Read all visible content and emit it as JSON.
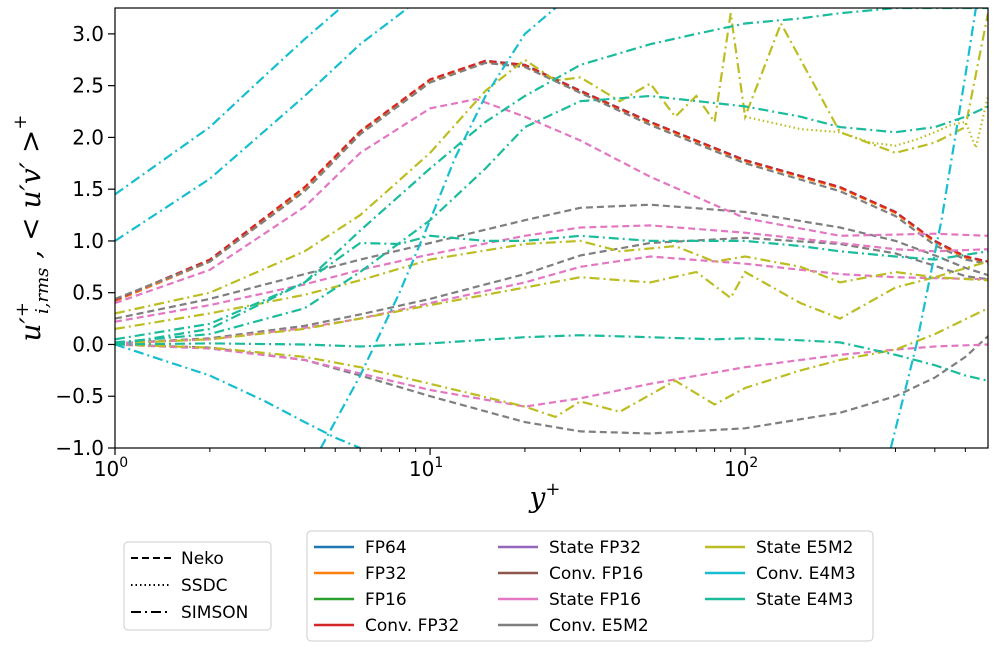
{
  "chart_data": {
    "type": "line",
    "title": "",
    "xlabel": "y+",
    "ylabel": "u'+_{i,rms} ,  <u'v'>+",
    "xscale": "log",
    "xlim": [
      1,
      590
    ],
    "ylim": [
      -1.0,
      3.25
    ],
    "grid": false,
    "x_ticks": [
      {
        "value": 1,
        "base": "10",
        "exp": "0"
      },
      {
        "value": 10,
        "base": "10",
        "exp": "1"
      },
      {
        "value": 100,
        "base": "10",
        "exp": "2"
      }
    ],
    "y_ticks": [
      {
        "value": -1.0,
        "label": "−1.0"
      },
      {
        "value": -0.5,
        "label": "−0.5"
      },
      {
        "value": 0.0,
        "label": "0.0"
      },
      {
        "value": 0.5,
        "label": "0.5"
      },
      {
        "value": 1.0,
        "label": "1.0"
      },
      {
        "value": 1.5,
        "label": "1.5"
      },
      {
        "value": 2.0,
        "label": "2.0"
      },
      {
        "value": 2.5,
        "label": "2.5"
      },
      {
        "value": 3.0,
        "label": "3.0"
      }
    ],
    "legend_linestyles": {
      "position": "below-left",
      "entries": [
        {
          "label": "Neko",
          "dash": "dashed"
        },
        {
          "label": "SSDC",
          "dash": "dotted"
        },
        {
          "label": "SIMSON",
          "dash": "dashdot"
        }
      ]
    },
    "legend_colors": {
      "position": "below-center",
      "columns": [
        [
          {
            "label": "FP64",
            "color": "#1f77b4"
          },
          {
            "label": "FP32",
            "color": "#ff7f0e"
          },
          {
            "label": "FP16",
            "color": "#2ca02c"
          },
          {
            "label": "Conv. FP32",
            "color": "#d62728"
          }
        ],
        [
          {
            "label": "State FP32",
            "color": "#9467bd"
          },
          {
            "label": "Conv. FP16",
            "color": "#8c564b"
          },
          {
            "label": "State FP16",
            "color": "#e377c2"
          },
          {
            "label": "Conv. E5M2",
            "color": "#7f7f7f"
          }
        ],
        [
          {
            "label": "State E5M2",
            "color": "#bcbd22"
          },
          {
            "label": "Conv. E4M3",
            "color": "#17becf"
          },
          {
            "label": "State E4M3",
            "color": "#1abc9c"
          }
        ]
      ]
    },
    "series": [
      {
        "name": "FP64 u_rms (Neko)",
        "color": "#1f77b4",
        "dash": "dashed",
        "x": [
          1,
          2,
          4,
          6,
          10,
          15,
          20,
          30,
          50,
          100,
          200,
          300,
          400,
          500,
          590
        ],
        "y": [
          0.42,
          0.8,
          1.5,
          2.05,
          2.55,
          2.74,
          2.7,
          2.45,
          2.15,
          1.78,
          1.52,
          1.28,
          1.0,
          0.85,
          0.8
        ]
      },
      {
        "name": "FP32 u_rms",
        "color": "#ff7f0e",
        "dash": "dashed",
        "x": [
          1,
          2,
          4,
          6,
          10,
          15,
          20,
          30,
          50,
          100,
          200,
          300,
          400,
          500,
          590
        ],
        "y": [
          0.42,
          0.8,
          1.5,
          2.05,
          2.55,
          2.73,
          2.69,
          2.44,
          2.14,
          1.77,
          1.51,
          1.27,
          0.99,
          0.84,
          0.8
        ]
      },
      {
        "name": "Conv. FP32 u_rms",
        "color": "#d62728",
        "dash": "dashed",
        "x": [
          1,
          2,
          4,
          6,
          10,
          15,
          20,
          30,
          50,
          100,
          200,
          300,
          400,
          500,
          590
        ],
        "y": [
          0.43,
          0.82,
          1.52,
          2.06,
          2.56,
          2.74,
          2.7,
          2.45,
          2.15,
          1.78,
          1.52,
          1.28,
          1.0,
          0.85,
          0.8
        ]
      },
      {
        "name": "Conv. E5M2 u_rms",
        "color": "#7f7f7f",
        "dash": "dashed",
        "x": [
          1,
          2,
          4,
          6,
          10,
          15,
          20,
          30,
          50,
          100,
          200,
          300,
          400,
          500,
          590
        ],
        "y": [
          0.44,
          0.8,
          1.48,
          2.03,
          2.53,
          2.72,
          2.68,
          2.43,
          2.12,
          1.75,
          1.48,
          1.24,
          0.96,
          0.82,
          0.78
        ]
      },
      {
        "name": "Conv. E5M2 w_rms",
        "color": "#7f7f7f",
        "dash": "dashed",
        "x": [
          1,
          2,
          4,
          6,
          10,
          20,
          30,
          50,
          100,
          200,
          300,
          400,
          500,
          590
        ],
        "y": [
          0.25,
          0.44,
          0.68,
          0.82,
          0.98,
          1.2,
          1.32,
          1.35,
          1.28,
          1.13,
          1.0,
          0.86,
          0.74,
          0.67
        ]
      },
      {
        "name": "Conv. E5M2 v_rms",
        "color": "#7f7f7f",
        "dash": "dashed",
        "x": [
          1,
          2,
          4,
          6,
          10,
          20,
          30,
          50,
          100,
          200,
          300,
          400,
          500,
          590
        ],
        "y": [
          0.01,
          0.06,
          0.18,
          0.29,
          0.44,
          0.68,
          0.86,
          0.98,
          1.03,
          0.97,
          0.88,
          0.76,
          0.66,
          0.63
        ]
      },
      {
        "name": "Conv. E5M2 uv",
        "color": "#7f7f7f",
        "dash": "dashed",
        "x": [
          1,
          2,
          4,
          6,
          10,
          20,
          30,
          50,
          100,
          200,
          300,
          400,
          500,
          590
        ],
        "y": [
          0.0,
          -0.03,
          -0.15,
          -0.3,
          -0.5,
          -0.75,
          -0.84,
          -0.86,
          -0.81,
          -0.66,
          -0.5,
          -0.32,
          -0.12,
          0.08
        ]
      },
      {
        "name": "State FP16 u_rms",
        "color": "#e377c2",
        "dash": "dashed",
        "x": [
          1,
          2,
          4,
          6,
          10,
          14,
          20,
          30,
          50,
          100,
          200,
          400,
          590
        ],
        "y": [
          0.4,
          0.72,
          1.33,
          1.85,
          2.28,
          2.37,
          2.2,
          1.97,
          1.62,
          1.22,
          1.05,
          1.07,
          1.05
        ]
      },
      {
        "name": "State FP16 w_rms",
        "color": "#e377c2",
        "dash": "dashed",
        "x": [
          1,
          2,
          4,
          6,
          10,
          20,
          30,
          50,
          100,
          200,
          300,
          400,
          590
        ],
        "y": [
          0.22,
          0.38,
          0.58,
          0.72,
          0.87,
          1.05,
          1.13,
          1.15,
          1.08,
          0.98,
          0.92,
          0.9,
          0.92
        ]
      },
      {
        "name": "State FP16 v_rms",
        "color": "#e377c2",
        "dash": "dashed",
        "x": [
          1,
          2,
          4,
          6,
          10,
          20,
          30,
          50,
          100,
          200,
          300,
          400,
          590
        ],
        "y": [
          0.01,
          0.05,
          0.16,
          0.25,
          0.4,
          0.6,
          0.75,
          0.85,
          0.78,
          0.68,
          0.65,
          0.64,
          0.63
        ]
      },
      {
        "name": "State FP16 uv",
        "color": "#e377c2",
        "dash": "dashed",
        "x": [
          1,
          2,
          4,
          6,
          10,
          20,
          30,
          50,
          100,
          200,
          300,
          400,
          590
        ],
        "y": [
          0.0,
          -0.04,
          -0.15,
          -0.28,
          -0.44,
          -0.6,
          -0.52,
          -0.38,
          -0.22,
          -0.1,
          -0.05,
          -0.02,
          0.0
        ]
      },
      {
        "name": "State E5M2 u_rms",
        "color": "#bcbd22",
        "dash": "dashdot",
        "x": [
          1,
          2,
          4,
          6,
          10,
          15,
          20,
          25,
          30,
          40,
          50,
          60,
          70,
          80,
          90,
          100,
          130,
          200,
          300,
          400,
          500,
          590
        ],
        "y": [
          0.3,
          0.5,
          0.9,
          1.25,
          1.85,
          2.45,
          2.75,
          2.55,
          2.58,
          2.35,
          2.52,
          2.2,
          2.4,
          2.15,
          3.2,
          2.2,
          3.1,
          2.05,
          1.85,
          1.95,
          2.1,
          3.2
        ]
      },
      {
        "name": "State E5M2 w_rms",
        "color": "#bcbd22",
        "dash": "dashdot",
        "x": [
          1,
          2,
          4,
          6,
          10,
          20,
          30,
          40,
          60,
          80,
          100,
          150,
          200,
          300,
          400,
          590
        ],
        "y": [
          0.15,
          0.3,
          0.48,
          0.62,
          0.82,
          0.97,
          1.0,
          0.9,
          0.95,
          0.8,
          0.85,
          0.75,
          0.6,
          0.7,
          0.65,
          0.8
        ]
      },
      {
        "name": "State E5M2 v_rms",
        "color": "#bcbd22",
        "dash": "dashdot",
        "x": [
          1,
          2,
          4,
          6,
          10,
          20,
          30,
          50,
          70,
          90,
          100,
          150,
          200,
          300,
          400,
          590
        ],
        "y": [
          0.01,
          0.05,
          0.15,
          0.25,
          0.38,
          0.55,
          0.65,
          0.6,
          0.7,
          0.45,
          0.7,
          0.4,
          0.25,
          0.55,
          0.65,
          0.62
        ]
      },
      {
        "name": "State E5M2 uv",
        "color": "#bcbd22",
        "dash": "dashdot",
        "x": [
          1,
          2,
          4,
          6,
          10,
          20,
          25,
          30,
          40,
          60,
          80,
          100,
          150,
          200,
          300,
          400,
          590
        ],
        "y": [
          0.0,
          -0.03,
          -0.12,
          -0.22,
          -0.38,
          -0.6,
          -0.7,
          -0.55,
          -0.65,
          -0.35,
          -0.58,
          -0.42,
          -0.25,
          -0.15,
          -0.05,
          0.1,
          0.35
        ]
      },
      {
        "name": "Conv. E4M3 u_rms",
        "color": "#17becf",
        "dash": "dashdot",
        "x": [
          1,
          2,
          3,
          4,
          5.2
        ],
        "y": [
          1.45,
          2.1,
          2.6,
          2.95,
          3.25
        ]
      },
      {
        "name": "Conv. E4M3 w_rms",
        "color": "#17becf",
        "dash": "dashdot",
        "x": [
          1,
          2,
          4,
          6,
          8.5
        ],
        "y": [
          1.0,
          1.6,
          2.4,
          2.9,
          3.25
        ]
      },
      {
        "name": "Conv. E4M3 v_rms",
        "color": "#17becf",
        "dash": "dashdot",
        "x": [
          4.5,
          6,
          8,
          10,
          12,
          15,
          20,
          25
        ],
        "y": [
          -1.0,
          -0.3,
          0.5,
          1.2,
          1.8,
          2.4,
          3.0,
          3.25
        ]
      },
      {
        "name": "Conv. E4M3 uv",
        "color": "#17becf",
        "dash": "dashdot",
        "x": [
          1,
          2,
          3,
          4,
          5,
          6
        ],
        "y": [
          0.0,
          -0.3,
          -0.55,
          -0.75,
          -0.9,
          -1.0
        ]
      },
      {
        "name": "Conv. E4M3 late",
        "color": "#17becf",
        "dash": "dashdot",
        "x": [
          290,
          350,
          420,
          500,
          540
        ],
        "y": [
          -1.0,
          0.0,
          1.2,
          2.6,
          3.25
        ]
      },
      {
        "name": "State E4M3 u_rms",
        "color": "#1abc9c",
        "dash": "dashdot",
        "x": [
          1,
          2,
          4,
          6,
          10,
          15,
          20,
          30,
          50,
          70,
          100,
          150,
          200,
          300,
          400,
          500,
          590
        ],
        "y": [
          0.05,
          0.2,
          0.6,
          1.1,
          1.7,
          2.15,
          2.4,
          2.7,
          2.9,
          3.0,
          3.1,
          3.15,
          3.2,
          3.25,
          3.25,
          3.25,
          3.25
        ]
      },
      {
        "name": "State E4M3 w_rms",
        "color": "#1abc9c",
        "dash": "dashdot",
        "x": [
          1,
          2,
          4,
          6,
          10,
          15,
          20,
          30,
          50,
          100,
          150,
          200,
          300,
          400,
          500,
          590
        ],
        "y": [
          0.02,
          0.1,
          0.35,
          0.7,
          1.2,
          1.7,
          2.1,
          2.35,
          2.4,
          2.3,
          2.2,
          2.1,
          2.05,
          2.1,
          2.2,
          2.3
        ]
      },
      {
        "name": "State E4M3 v_rms",
        "color": "#1abc9c",
        "dash": "dashdot",
        "x": [
          1,
          2,
          4,
          6,
          8,
          10,
          15,
          20,
          30,
          50,
          100,
          150,
          200,
          300,
          400,
          590
        ],
        "y": [
          0.0,
          0.15,
          0.6,
          0.98,
          0.97,
          1.05,
          1.0,
          1.0,
          1.05,
          1.0,
          1.0,
          0.95,
          0.9,
          0.85,
          0.82,
          0.9
        ]
      },
      {
        "name": "State E4M3 uv",
        "color": "#1abc9c",
        "dash": "dashdot",
        "x": [
          1,
          2,
          4,
          6,
          10,
          20,
          30,
          50,
          80,
          100,
          150,
          200,
          300,
          400,
          500,
          590
        ],
        "y": [
          0.0,
          0.01,
          0.0,
          -0.02,
          0.01,
          0.07,
          0.09,
          0.07,
          0.05,
          0.06,
          0.04,
          0.02,
          -0.1,
          -0.2,
          -0.3,
          -0.35
        ]
      },
      {
        "name": "State E5M2 noisy tail",
        "color": "#bcbd22",
        "dash": "dotted",
        "x": [
          100,
          150,
          200,
          250,
          300,
          350,
          400,
          450,
          500,
          540,
          590
        ],
        "y": [
          2.2,
          2.08,
          2.05,
          1.95,
          1.92,
          1.98,
          2.05,
          2.12,
          2.15,
          1.9,
          2.4
        ]
      }
    ]
  }
}
